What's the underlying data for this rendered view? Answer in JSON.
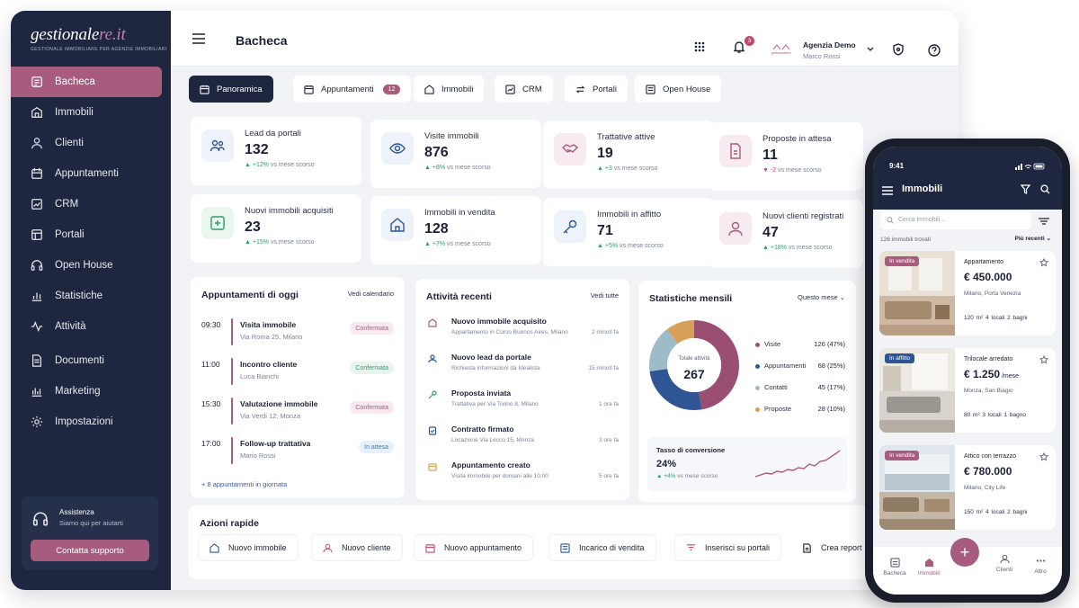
{
  "brand": {
    "wordmark_a": "gestionale",
    "wordmark_b": "re.it",
    "tagline": "GESTIONALE IMMOBILIARE PER AGENZIE IMMOBILIARI"
  },
  "sidebar": {
    "items": [
      {
        "label": "Bacheca",
        "icon": "dashboard-icon",
        "active": true
      },
      {
        "label": "Immobili",
        "icon": "building-icon"
      },
      {
        "label": "Clienti",
        "icon": "user-icon"
      },
      {
        "label": "Appuntamenti",
        "icon": "calendar-icon"
      },
      {
        "label": "CRM",
        "icon": "crm-icon"
      },
      {
        "label": "Portali",
        "icon": "portal-icon"
      },
      {
        "label": "Open House",
        "icon": "headset-icon"
      },
      {
        "label": "Statistiche",
        "icon": "chart-icon"
      },
      {
        "label": "Attività",
        "icon": "activity-icon"
      },
      {
        "label": "Documenti",
        "icon": "document-icon"
      },
      {
        "label": "Marketing",
        "icon": "marketing-icon"
      },
      {
        "label": "Impostazioni",
        "icon": "gear-icon"
      }
    ],
    "support": {
      "title": "Assistenza",
      "subtitle": "Siamo qui per aiutarti",
      "button": "Contatta supporto"
    }
  },
  "header": {
    "title": "Bacheca",
    "notifications": "3",
    "agency_name": "Agenzia Demo",
    "user_name": "Marco Rossi",
    "agency_logo": "gestionalere"
  },
  "tabs": [
    {
      "label": "Panoramica",
      "active": true
    },
    {
      "label": "Appuntamenti",
      "badge": "12"
    },
    {
      "label": "Immobili"
    },
    {
      "label": "CRM"
    },
    {
      "label": "Portali"
    },
    {
      "label": "Open House"
    }
  ],
  "kpis": [
    {
      "label": "Lead da portali",
      "value": "132",
      "delta": "+12%",
      "note": "vs mese scorso",
      "trend": "up"
    },
    {
      "label": "Visite immobili",
      "value": "876",
      "delta": "+8%",
      "note": "vs mese scorso",
      "trend": "up"
    },
    {
      "label": "Trattative attive",
      "value": "19",
      "delta": "+3",
      "note": "vs mese scorso",
      "trend": "up"
    },
    {
      "label": "Proposte in attesa",
      "value": "11",
      "delta": "-2",
      "note": "vs mese scorso",
      "trend": "down"
    },
    {
      "label": "Nuovi immobili acquisiti",
      "value": "23",
      "delta": "+15%",
      "note": "vs mese scorso",
      "trend": "up"
    },
    {
      "label": "Immobili in vendita",
      "value": "128",
      "delta": "+7%",
      "note": "vs mese scorso",
      "trend": "up"
    },
    {
      "label": "Immobili in affitto",
      "value": "71",
      "delta": "+5%",
      "note": "vs mese scorso",
      "trend": "up"
    },
    {
      "label": "Nuovi clienti registrati",
      "value": "47",
      "delta": "+18%",
      "note": "vs mese scorso",
      "trend": "up"
    }
  ],
  "appointments": {
    "title": "Appuntamenti di oggi",
    "link": "Vedi calendario",
    "items": [
      {
        "time": "09:30",
        "title": "Visita immobile",
        "detail": "Via Roma 25, Milano",
        "status": "Confermata",
        "kind": "conf"
      },
      {
        "time": "11:00",
        "title": "Incontro cliente",
        "detail": "Luca Bianchi",
        "status": "Confermata",
        "kind": "conf"
      },
      {
        "time": "15:30",
        "title": "Valutazione immobile",
        "detail": "Via Verdi 12, Monza",
        "status": "Confermata",
        "kind": "conf"
      },
      {
        "time": "17:00",
        "title": "Follow-up trattativa",
        "detail": "Mario Rossi",
        "status": "In attesa",
        "kind": "wait"
      }
    ],
    "more": "+ 8 appuntamenti in giornata"
  },
  "activity": {
    "title": "Attività recenti",
    "link": "Vedi tutte",
    "items": [
      {
        "title": "Nuovo immobile acquisito",
        "detail": "Appartamento in Corso Buenos Aires, Milano",
        "time": "2 minuti fa"
      },
      {
        "title": "Nuovo lead da portale",
        "detail": "Richiesta informazioni da Idealista",
        "time": "15 minuti fa"
      },
      {
        "title": "Proposta inviata",
        "detail": "Trattativa per Via Torino 8, Milano",
        "time": "1 ora fa"
      },
      {
        "title": "Contratto firmato",
        "detail": "Locazione Via Lecco 15, Monza",
        "time": "3 ore fa"
      },
      {
        "title": "Appuntamento creato",
        "detail": "Visita immobile per domani alle 10:00",
        "time": "5 ore fa"
      }
    ]
  },
  "stats": {
    "title": "Statistiche mensili",
    "period": "Questo mese",
    "center_label": "Totale attività",
    "center_value": "267",
    "conversion_title": "Tasso di conversione",
    "conversion_value": "24%",
    "conversion_delta": "+4%",
    "conversion_note": "vs mese scorso"
  },
  "chart_data": {
    "type": "pie",
    "title": "Statistiche mensili",
    "total": 267,
    "series": [
      {
        "name": "Visite",
        "value": 126,
        "pct": "126 (47%)",
        "color": "#9a4e72"
      },
      {
        "name": "Appuntamenti",
        "value": 68,
        "pct": "68 (25%)",
        "color": "#2f5694"
      },
      {
        "name": "Contatti",
        "value": 45,
        "pct": "45 (17%)",
        "color": "#9dbcc7"
      },
      {
        "name": "Proposte",
        "value": 28,
        "pct": "28 (10%)",
        "color": "#d8a15a"
      }
    ]
  },
  "quick": {
    "title": "Azioni rapide",
    "actions": [
      {
        "label": "Nuovo immobile"
      },
      {
        "label": "Nuovo cliente"
      },
      {
        "label": "Nuovo appuntamento"
      },
      {
        "label": "Incarico di vendita"
      },
      {
        "label": "Inserisci su portali"
      },
      {
        "label": "Crea report"
      }
    ]
  },
  "phone": {
    "time": "9:41",
    "title": "Immobili",
    "search_placeholder": "Cerca immobili...",
    "count": "126 immobili trovati",
    "sort": "Più recenti",
    "listings": [
      {
        "badge": "In vendita",
        "type": "Appartamento",
        "price": "€ 450.000",
        "unit": "",
        "location": "Milano, Porta Venezia",
        "specs": "120 m²    4 locali    2 bagni"
      },
      {
        "badge": "In affitto",
        "type": "Trilocale arredato",
        "price": "€ 1.250",
        "unit": " /mese",
        "location": "Monza, San Biagio",
        "specs": "80 m²    3 locali    1 bagno"
      },
      {
        "badge": "In vendita",
        "type": "Attico con terrazzo",
        "price": "€ 780.000",
        "unit": "",
        "location": "Milano, City Life",
        "specs": "150 m²    4 locali    2 bagni"
      }
    ],
    "nav": [
      "Bacheca",
      "Immobili",
      "+",
      "Clienti",
      "Altro"
    ]
  },
  "colors": {
    "accent": "#a75c7e",
    "sidebar": "#1f2740",
    "up": "#2e9d6b",
    "down": "#d04366"
  }
}
